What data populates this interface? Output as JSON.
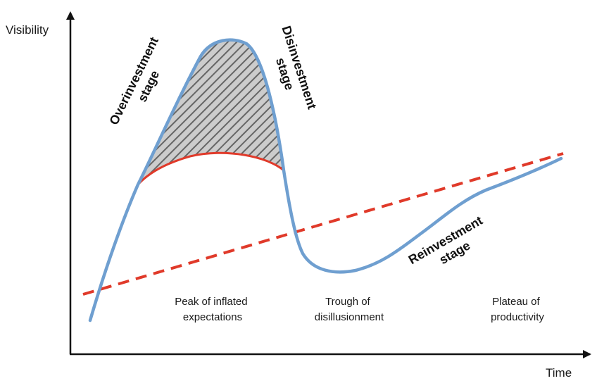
{
  "axes": {
    "y_label": "Visibility",
    "x_label": "Time"
  },
  "stage_labels": {
    "overinvestment": [
      "Overinvestment",
      "stage"
    ],
    "disinvestment": [
      "Disinvestment",
      "stage"
    ],
    "reinvestment": [
      "Reinvestment",
      "stage"
    ]
  },
  "phase_labels": {
    "peak": [
      "Peak of inflated",
      "expectations"
    ],
    "trough": [
      "Trough of",
      "disillusionment"
    ],
    "plateau": [
      "Plateau of",
      "productivity"
    ]
  },
  "colors": {
    "hype_curve": "#6f9fd0",
    "red_line": "#e03a2a",
    "hatch": "#666666",
    "hatch_bg": "#cccccc",
    "axis": "#111111"
  }
}
